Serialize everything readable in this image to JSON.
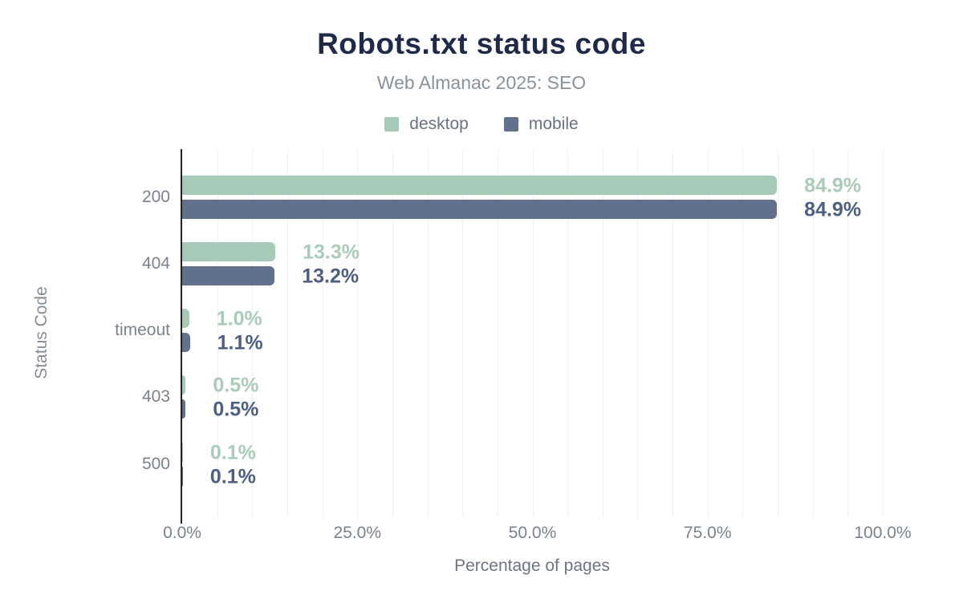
{
  "header": {
    "title": "Robots.txt status code",
    "subtitle": "Web Almanac 2025: SEO"
  },
  "chart_data": {
    "type": "bar",
    "orientation": "horizontal",
    "title": "Robots.txt status code",
    "subtitle": "Web Almanac 2025: SEO",
    "categories": [
      "200",
      "404",
      "timeout",
      "403",
      "500"
    ],
    "series": [
      {
        "name": "desktop",
        "color": "#a7c9b8",
        "label_color": "#a9cbba",
        "values": [
          84.9,
          13.3,
          1.0,
          0.5,
          0.1
        ],
        "labels": [
          "84.9%",
          "13.3%",
          "1.0%",
          "0.5%",
          "0.1%"
        ]
      },
      {
        "name": "mobile",
        "color": "#61708b",
        "label_color": "#4c5f83",
        "values": [
          84.9,
          13.2,
          1.1,
          0.5,
          0.1
        ],
        "labels": [
          "84.9%",
          "13.2%",
          "1.1%",
          "0.5%",
          "0.1%"
        ]
      }
    ],
    "xlabel": "Percentage of pages",
    "ylabel": "Status Code",
    "xlim": [
      0,
      100
    ],
    "x_ticks": [
      {
        "value": 0,
        "label": "0.0%"
      },
      {
        "value": 25,
        "label": "25.0%"
      },
      {
        "value": 50,
        "label": "50.0%"
      },
      {
        "value": 75,
        "label": "75.0%"
      },
      {
        "value": 100,
        "label": "100.0%"
      }
    ],
    "grid": {
      "minor_step_pct": 5,
      "color": "#eef0f2"
    },
    "legend_position": "top"
  }
}
